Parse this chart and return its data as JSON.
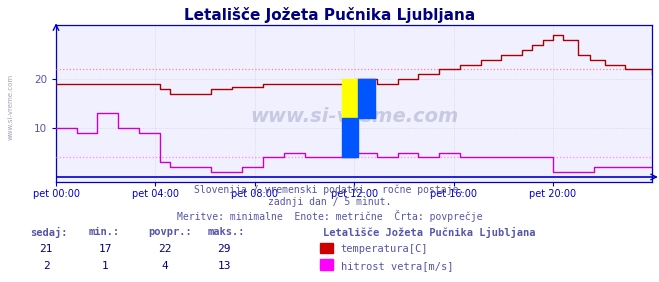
{
  "title": "Letališče Jožeta Pučnika Ljubljana",
  "subtitle1": "Slovenija / vremenski podatki - ročne postaje.",
  "subtitle2": "zadnji dan / 5 minut.",
  "subtitle3": "Meritve: minimalne  Enote: metrične  Črta: povprečje",
  "legend_title": "Letališče Jožeta Pučnika Ljubljana",
  "legend_entries": [
    "temperatura[C]",
    "hitrost vetra[m/s]"
  ],
  "legend_colors": [
    "#cc0000",
    "#ff00ff"
  ],
  "table_headers": [
    "sedaj:",
    "min.:",
    "povpr.:",
    "maks.:"
  ],
  "table_rows": [
    [
      21,
      17,
      22,
      29
    ],
    [
      2,
      1,
      4,
      13
    ]
  ],
  "bg_color": "#ffffff",
  "plot_bg_color": "#f0f0ff",
  "grid_color": "#ccccdd",
  "title_color": "#000080",
  "text_color": "#5555aa",
  "xlabel_color": "#5555aa",
  "temp_color": "#aa0000",
  "wind_color": "#cc00cc",
  "avg_temp_color": "#ff8888",
  "avg_wind_color": "#ff88ff",
  "axis_color": "#0000cc",
  "xlim": [
    0,
    288
  ],
  "ylim": [
    -1,
    31
  ],
  "yticks": [
    10,
    20
  ],
  "temp_avg_line": 22,
  "wind_avg_line": 4,
  "xtick_positions": [
    0,
    48,
    96,
    144,
    192,
    240
  ],
  "xtick_labels": [
    "pet 00:00",
    "pet 04:00",
    "pet 08:00",
    "pet 12:00",
    "pet 16:00",
    "pet 20:00"
  ]
}
